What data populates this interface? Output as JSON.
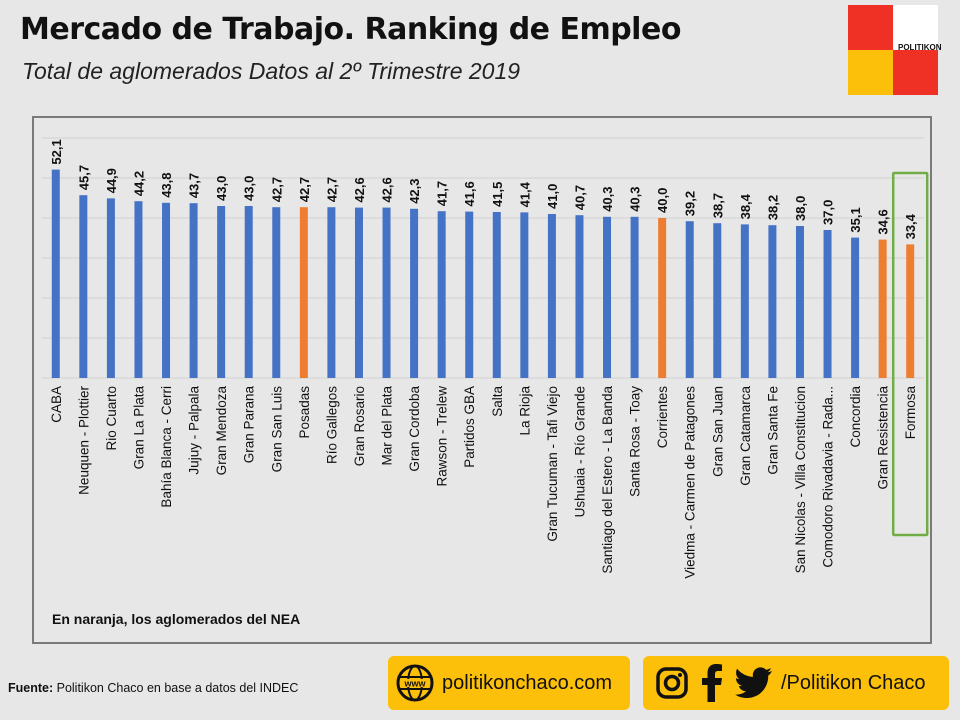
{
  "header": {
    "title": "Mercado de Trabajo. Ranking de Empleo",
    "subtitle": "Total de aglomerados Datos al 2º Trimestre 2019"
  },
  "logo": {
    "text": "POLITIKON"
  },
  "colors": {
    "blue": "#4472c4",
    "orange": "#ed7d31",
    "highlight_box": "#70ad47",
    "accent_yellow": "#fcbf0a",
    "logo_red": "#ee3124"
  },
  "note": "En naranja, los aglomerados del NEA",
  "footer": {
    "source_label": "Fuente:",
    "source_text": " Politikon Chaco en base a datos del INDEC",
    "website": "politikonchaco.com",
    "social_handle": "/Politikon Chaco",
    "icons": [
      "www-globe-icon",
      "instagram-icon",
      "facebook-icon",
      "twitter-icon"
    ]
  },
  "chart_data": {
    "type": "bar",
    "categories": [
      "CABA",
      "Neuquen - Plottier",
      "Rio Cuarto",
      "Gran La Plata",
      "Bahía Blanca - Cerri",
      "Jujuy - Palpala",
      "Gran Mendoza",
      "Gran Parana",
      "Gran San Luis",
      "Posadas",
      "Río Gallegos",
      "Gran Rosario",
      "Mar del Plata",
      "Gran Cordoba",
      "Rawson - Trelew",
      "Partidos GBA",
      "Salta",
      "La Rioja",
      "Gran Tucuman - Tafi Viejo",
      "Ushuaia - Río Grande",
      "Santiago del Estero - La Banda",
      "Santa Rosa - Toay",
      "Corrientes",
      "Viedma - Carmen de Patagones",
      "Gran San Juan",
      "Gran Catamarca",
      "Gran Santa Fe",
      "San Nicolas - Villa Constitucion",
      "Comodoro Rivadavia - Rada...",
      "Concordia",
      "Gran Resistencia",
      "Formosa"
    ],
    "values": [
      52.1,
      45.7,
      44.9,
      44.2,
      43.8,
      43.7,
      43.0,
      43.0,
      42.7,
      42.7,
      42.7,
      42.6,
      42.6,
      42.3,
      41.7,
      41.6,
      41.5,
      41.4,
      41.0,
      40.7,
      40.3,
      40.3,
      40.0,
      39.2,
      38.7,
      38.4,
      38.2,
      38.0,
      37.0,
      35.1,
      34.6,
      33.4
    ],
    "value_labels": [
      "52,1",
      "45,7",
      "44,9",
      "44,2",
      "43,8",
      "43,7",
      "43,0",
      "43,0",
      "42,7",
      "42,7",
      "42,7",
      "42,6",
      "42,6",
      "42,3",
      "41,7",
      "41,6",
      "41,5",
      "41,4",
      "41,0",
      "40,7",
      "40,3",
      "40,3",
      "40,0",
      "39,2",
      "38,7",
      "38,4",
      "38,2",
      "38,0",
      "37,0",
      "35,1",
      "34,6",
      "33,4"
    ],
    "nea_highlight": [
      false,
      false,
      false,
      false,
      false,
      false,
      false,
      false,
      false,
      true,
      false,
      false,
      false,
      false,
      false,
      false,
      false,
      false,
      false,
      false,
      false,
      false,
      true,
      false,
      false,
      false,
      false,
      false,
      false,
      false,
      true,
      true
    ],
    "boxed_category": "Formosa",
    "ylim": [
      0,
      60
    ],
    "grid": true,
    "title": "",
    "xlabel": "",
    "ylabel": ""
  }
}
